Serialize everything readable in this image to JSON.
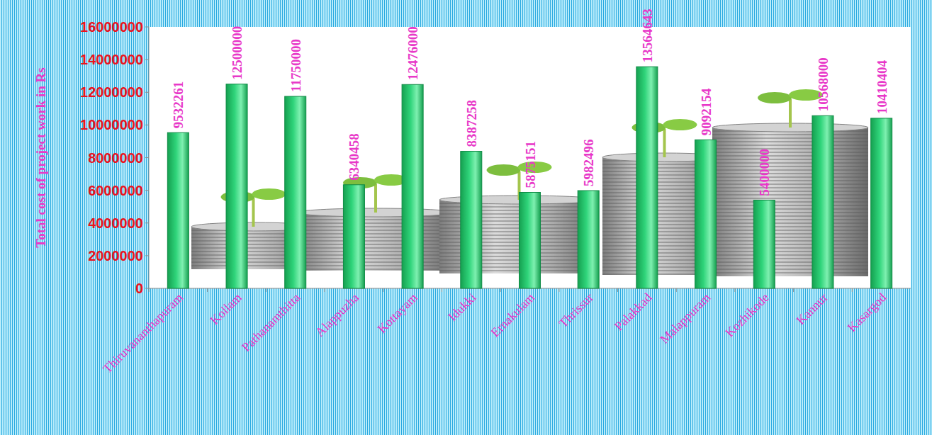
{
  "chart_data": {
    "type": "bar",
    "y_label": "Total cost of project  work in Rs",
    "categories": [
      "Thiruvananthapuram",
      "Kollam",
      "Pathanamthitta",
      "Alappuzha",
      "Kottayam",
      "Idukki",
      "Ernakulam",
      "Thrissur",
      "Palakkad",
      "Malappuram",
      "Kozhikode",
      "Kannur",
      "Kasargod"
    ],
    "values": [
      9532261,
      12500000,
      11750000,
      6340458,
      12476000,
      8387258,
      5875151,
      5982496,
      13564643,
      9092154,
      5400000,
      10568000,
      10410404
    ],
    "color": "#2fd47a",
    "ylim": [
      0,
      16000000
    ],
    "yticks": [
      0,
      2000000,
      4000000,
      6000000,
      8000000,
      10000000,
      12000000,
      14000000,
      16000000
    ],
    "grid": false,
    "data_labels": true
  }
}
